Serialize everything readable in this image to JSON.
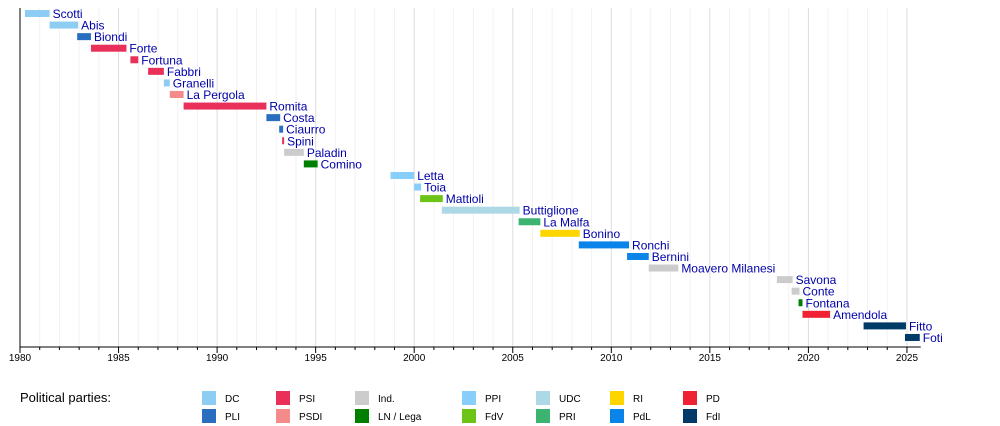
{
  "chart_data": {
    "type": "timeline",
    "xlim": [
      1980,
      2025.7
    ],
    "x_ticks": [
      1980,
      1985,
      1990,
      1995,
      2000,
      2005,
      2010,
      2015,
      2020,
      2025
    ],
    "grid": "vertical, yearly",
    "legend_title": "Political parties:",
    "legend_placement": "bottom",
    "parties": [
      {
        "name": "DC",
        "color": "#8dcdf3"
      },
      {
        "name": "PLI",
        "color": "#2a6fbf"
      },
      {
        "name": "PSI",
        "color": "#e8305a"
      },
      {
        "name": "PSDI",
        "color": "#f58a8a"
      },
      {
        "name": "Ind.",
        "color": "#cccccc"
      },
      {
        "name": "LN / Lega",
        "color": "#008000"
      },
      {
        "name": "PPI",
        "color": "#87cefa"
      },
      {
        "name": "FdV",
        "color": "#6cc417"
      },
      {
        "name": "UDC",
        "color": "#add8e6"
      },
      {
        "name": "PRI",
        "color": "#3cb371"
      },
      {
        "name": "RI",
        "color": "#ffd500"
      },
      {
        "name": "PdL",
        "color": "#0a84e8"
      },
      {
        "name": "PD",
        "color": "#ee2233"
      },
      {
        "name": "FdI",
        "color": "#003a66"
      }
    ],
    "series": [
      {
        "name": "Scotti",
        "party": "DC",
        "start": 1980.25,
        "end": 1981.5
      },
      {
        "name": "Abis",
        "party": "DC",
        "start": 1981.5,
        "end": 1982.95
      },
      {
        "name": "Biondi",
        "party": "PLI",
        "start": 1982.9,
        "end": 1983.6
      },
      {
        "name": "Forte",
        "party": "PSI",
        "start": 1983.6,
        "end": 1985.4
      },
      {
        "name": "Fortuna",
        "party": "PSI",
        "start": 1985.6,
        "end": 1986.0
      },
      {
        "name": "Fabbri",
        "party": "PSI",
        "start": 1986.5,
        "end": 1987.3
      },
      {
        "name": "Granelli",
        "party": "DC",
        "start": 1987.3,
        "end": 1987.6
      },
      {
        "name": "La Pergola",
        "party": "PSDI",
        "start": 1987.6,
        "end": 1988.3
      },
      {
        "name": "Romita",
        "party": "PSI",
        "start": 1988.3,
        "end": 1992.5
      },
      {
        "name": "Costa",
        "party": "PLI",
        "start": 1992.5,
        "end": 1993.2
      },
      {
        "name": "Ciaurro",
        "party": "PLI",
        "start": 1993.15,
        "end": 1993.35
      },
      {
        "name": "Spini",
        "party": "PSI",
        "start": 1993.3,
        "end": 1993.4
      },
      {
        "name": "Paladin",
        "party": "Ind.",
        "start": 1993.4,
        "end": 1994.4
      },
      {
        "name": "Comino",
        "party": "LN / Lega",
        "start": 1994.4,
        "end": 1995.1
      },
      {
        "name": "Letta",
        "party": "PPI",
        "start": 1998.8,
        "end": 2000.0
      },
      {
        "name": "Toia",
        "party": "PPI",
        "start": 2000.0,
        "end": 2000.35
      },
      {
        "name": "Mattioli",
        "party": "FdV",
        "start": 2000.3,
        "end": 2001.45
      },
      {
        "name": "Buttiglione",
        "party": "UDC",
        "start": 2001.4,
        "end": 2005.35
      },
      {
        "name": "La Malfa",
        "party": "PRI",
        "start": 2005.3,
        "end": 2006.4
      },
      {
        "name": "Bonino",
        "party": "RI",
        "start": 2006.4,
        "end": 2008.4
      },
      {
        "name": "Ronchi",
        "party": "PdL",
        "start": 2008.35,
        "end": 2010.9
      },
      {
        "name": "Bernini",
        "party": "PdL",
        "start": 2010.8,
        "end": 2011.9
      },
      {
        "name": "Moavero Milanesi",
        "party": "Ind.",
        "start": 2011.9,
        "end": 2013.4
      },
      {
        "name": "Savona",
        "party": "Ind.",
        "start": 2018.4,
        "end": 2019.2
      },
      {
        "name": "Conte",
        "party": "Ind.",
        "start": 2019.15,
        "end": 2019.55
      },
      {
        "name": "Fontana",
        "party": "LN / Lega",
        "start": 2019.5,
        "end": 2019.7
      },
      {
        "name": "Amendola",
        "party": "PD",
        "start": 2019.7,
        "end": 2021.1
      },
      {
        "name": "Fitto",
        "party": "FdI",
        "start": 2022.8,
        "end": 2024.95
      },
      {
        "name": "Foti",
        "party": "FdI",
        "start": 2024.9,
        "end": 2025.65
      }
    ]
  }
}
